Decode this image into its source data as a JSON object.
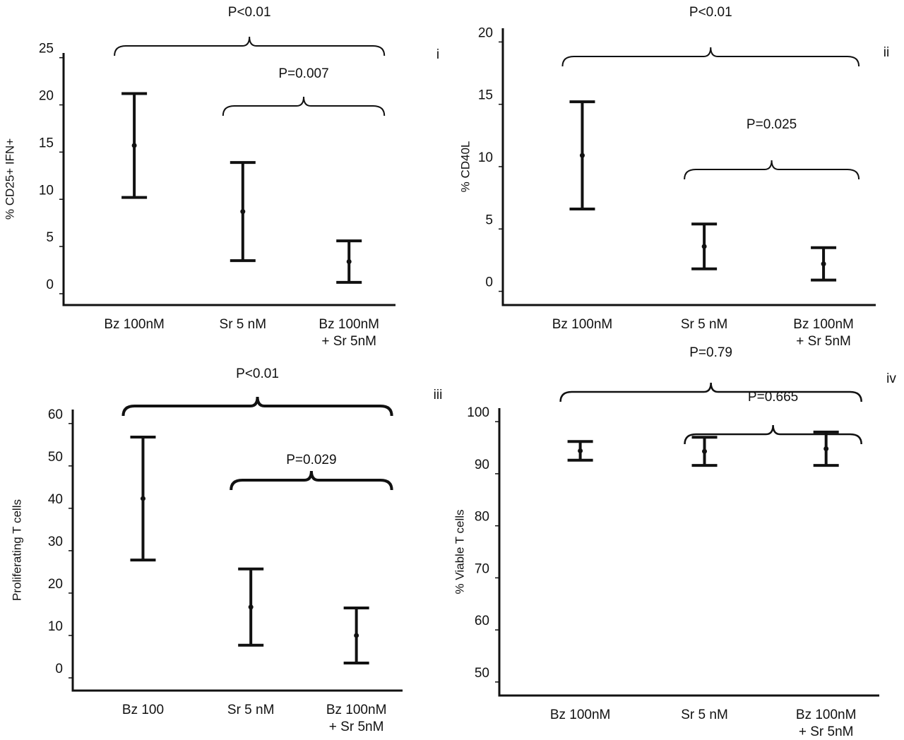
{
  "chart_data": [
    {
      "type": "errorbar",
      "panel": "i",
      "ylabel": "% CD25+ IFN+",
      "categories": [
        "Bz 100nM",
        "Sr 5 nM",
        "Bz 100nM\n+ Sr 5nM"
      ],
      "values": [
        15.7,
        8.7,
        3.4
      ],
      "errors": [
        5.5,
        5.2,
        2.2
      ],
      "ylim": [
        -1.2,
        25.5
      ],
      "yticks": [
        0,
        5,
        10,
        15,
        20,
        25
      ],
      "color": "#111111",
      "annotations": [
        {
          "text": "P<0.01",
          "span": [
            0,
            2
          ]
        },
        {
          "text": "P=0.007",
          "span": [
            1,
            2
          ]
        }
      ]
    },
    {
      "type": "errorbar",
      "panel": "ii",
      "ylabel": "% CD40L",
      "categories": [
        "Bz 100nM",
        "Sr 5 nM",
        "Bz 100nM\n+ Sr 5nM"
      ],
      "values": [
        10.9,
        3.6,
        2.2
      ],
      "errors": [
        4.3,
        1.8,
        1.3
      ],
      "ylim": [
        -1.1,
        21.1
      ],
      "yticks": [
        0,
        5,
        10,
        15,
        20
      ],
      "color": "#111111",
      "annotations": [
        {
          "text": "P<0.01",
          "span": [
            0,
            2
          ]
        },
        {
          "text": "P=0.025",
          "span": [
            1,
            2
          ]
        }
      ]
    },
    {
      "type": "errorbar",
      "panel": "iii",
      "ylabel": "Proliferating T cells",
      "categories": [
        "Bz 100",
        "Sr 5 nM",
        "Bz 100nM\n+ Sr 5nM"
      ],
      "values": [
        42.3,
        16.7,
        10
      ],
      "errors": [
        14.5,
        9,
        6.5
      ],
      "ylim": [
        -3,
        63.3
      ],
      "yticks": [
        0,
        10,
        20,
        30,
        40,
        50,
        60
      ],
      "color": "#111111",
      "annotations": [
        {
          "text": "P<0.01",
          "span": [
            0,
            2
          ]
        },
        {
          "text": "P=0.029",
          "span": [
            1,
            2
          ]
        }
      ]
    },
    {
      "type": "errorbar",
      "panel": "iv",
      "ylabel": "% Viable T cells",
      "categories": [
        "Bz 100nM",
        "Sr 5 nM",
        "Bz 100nM\n+ Sr 5nM"
      ],
      "values": [
        94.4,
        94.3,
        94.8
      ],
      "errors": [
        1.8,
        2.7,
        3.2
      ],
      "ylim": [
        47.4,
        102.6
      ],
      "yticks": [
        50,
        60,
        70,
        80,
        90,
        100
      ],
      "color": "#111111",
      "annotations": [
        {
          "text": "P=0.79",
          "span": [
            0,
            2
          ]
        },
        {
          "text": "P=0.665",
          "span": [
            1,
            2
          ]
        }
      ]
    }
  ]
}
